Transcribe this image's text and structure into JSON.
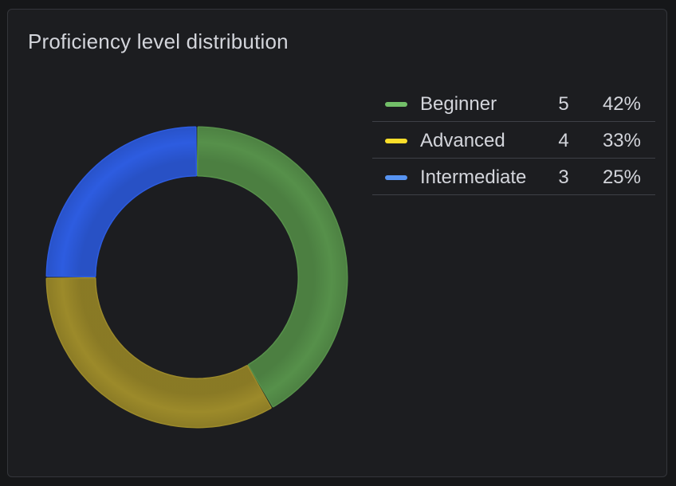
{
  "panel": {
    "title": "Proficiency level distribution"
  },
  "chart_data": {
    "type": "pie",
    "style": "donut",
    "categories": [
      "Beginner",
      "Advanced",
      "Intermediate"
    ],
    "values": [
      5,
      4,
      3
    ],
    "percentages": [
      "42%",
      "33%",
      "25%"
    ],
    "colors": [
      "#73bf69",
      "#fade2a",
      "#5794f2"
    ],
    "slice_colors": [
      "#56904a",
      "#9c8a2a",
      "#2d5ce0"
    ],
    "legend_placement": "right"
  },
  "legend": [
    {
      "label": "Beginner",
      "count": "5",
      "percent": "42%"
    },
    {
      "label": "Advanced",
      "count": "4",
      "percent": "33%"
    },
    {
      "label": "Intermediate",
      "count": "3",
      "percent": "25%"
    }
  ]
}
